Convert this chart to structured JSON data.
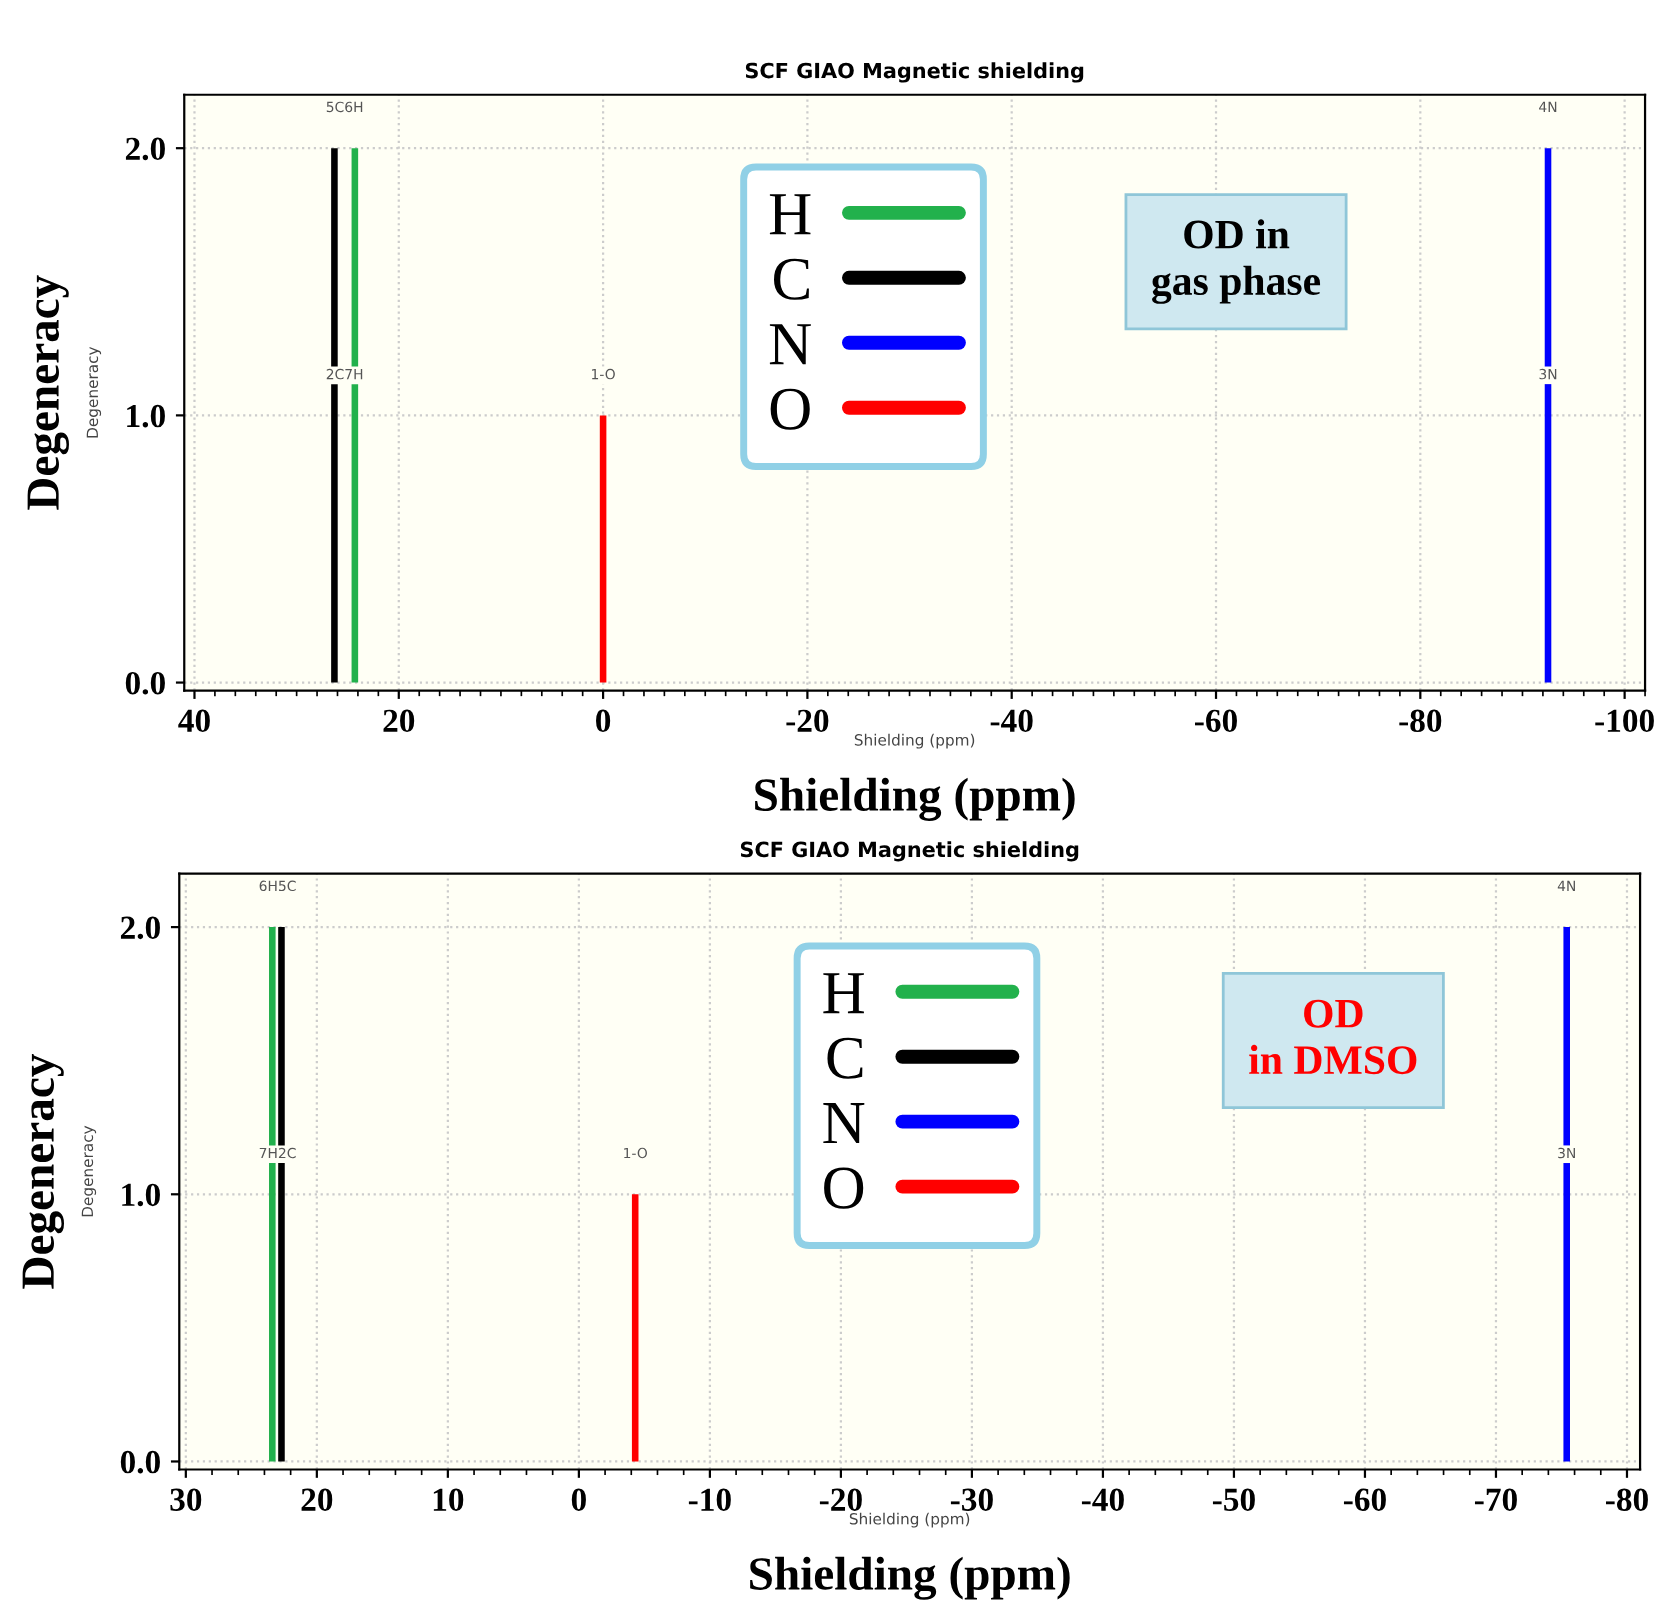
{
  "chart_data": [
    {
      "type": "bar",
      "title": "SCF GIAO Magnetic shielding",
      "xlabel": "Shielding (ppm)",
      "ylabel": "Degeneracy",
      "series": [
        {
          "name": "H",
          "color": "#22b14c",
          "x": [
            24.3
          ],
          "values": [
            2
          ]
        },
        {
          "name": "C",
          "color": "#000000",
          "x": [
            26.3
          ],
          "values": [
            2
          ]
        },
        {
          "name": "N",
          "color": "#0000ff",
          "x": [
            -92.5
          ],
          "values": [
            2
          ]
        },
        {
          "name": "O",
          "color": "#ff0000",
          "x": [
            0
          ],
          "values": [
            1
          ]
        }
      ],
      "xlim": [
        41,
        -102
      ],
      "xticks": [
        40,
        20,
        0,
        -20,
        -40,
        -60,
        -80,
        -100
      ],
      "ylim": [
        -0.03,
        2.2
      ],
      "yticks": [
        {
          "value": 0,
          "label": "0.0"
        },
        {
          "value": 1,
          "label": "1.0"
        },
        {
          "value": 2,
          "label": "2.0"
        }
      ],
      "grid": true,
      "legend": "top",
      "annotations": [
        {
          "text": "5C6H",
          "x": 25.3,
          "y": 2
        },
        {
          "text": "2C7H",
          "x": 25.3,
          "y": 1
        },
        {
          "text": "1-O",
          "x": 0,
          "y": 1
        },
        {
          "text": "4N",
          "x": -92.5,
          "y": 2
        },
        {
          "text": "3N",
          "x": -92.5,
          "y": 1
        },
        "OD in\ngas phase",
        "Degeneracy",
        "Shielding (ppm)"
      ]
    },
    {
      "type": "bar",
      "title": "SCF GIAO Magnetic shielding",
      "xlabel": "Shielding (ppm)",
      "ylabel": "Degeneracy",
      "series": [
        {
          "name": "H",
          "color": "#22b14c",
          "x": [
            23.4
          ],
          "values": [
            2
          ]
        },
        {
          "name": "C",
          "color": "#000000",
          "x": [
            22.7
          ],
          "values": [
            2
          ]
        },
        {
          "name": "N",
          "color": "#0000ff",
          "x": [
            -75.4
          ],
          "values": [
            2
          ]
        },
        {
          "name": "O",
          "color": "#ff0000",
          "x": [
            -4.3
          ],
          "values": [
            1
          ]
        }
      ],
      "xlim": [
        30.5,
        -81
      ],
      "xticks": [
        30,
        20,
        10,
        0,
        -10,
        -20,
        -30,
        -40,
        -50,
        -60,
        -70,
        -80
      ],
      "ylim": [
        -0.03,
        2.2
      ],
      "yticks": [
        {
          "value": 0,
          "label": "0.0"
        },
        {
          "value": 1,
          "label": "1.0"
        },
        {
          "value": 2,
          "label": "2.0"
        }
      ],
      "grid": true,
      "legend": "top",
      "annotations": [
        {
          "text": "6H5C",
          "x": 23.0,
          "y": 2
        },
        {
          "text": "7H2C",
          "x": 23.0,
          "y": 1
        },
        {
          "text": "1-O",
          "x": -4.3,
          "y": 1
        },
        {
          "text": "4N",
          "x": -75.4,
          "y": 2
        },
        {
          "text": "3N",
          "x": -75.4,
          "y": 1
        },
        "OD\nin DMSO",
        "Degeneracy",
        "Shielding (ppm)"
      ]
    }
  ]
}
